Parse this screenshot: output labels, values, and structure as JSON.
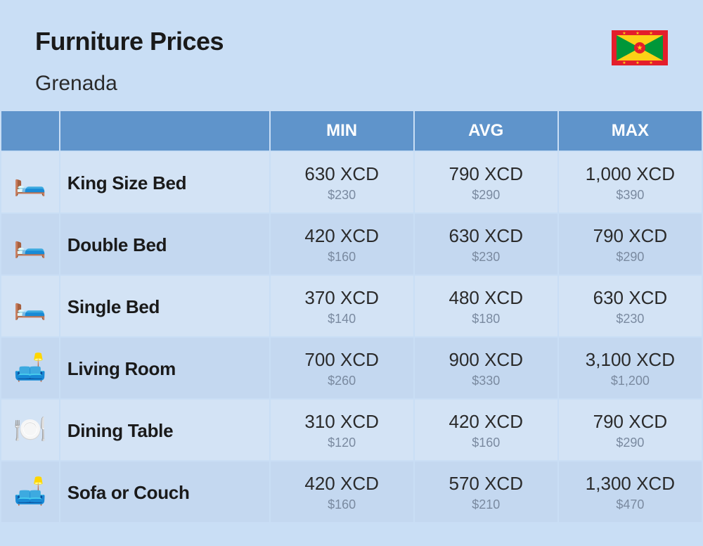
{
  "header": {
    "title": "Furniture Prices",
    "subtitle": "Grenada"
  },
  "table": {
    "columns": [
      "MIN",
      "AVG",
      "MAX"
    ],
    "header_bg": "#5f94cb",
    "header_text_color": "#ffffff",
    "row_bg": "#d3e3f5",
    "row_alt_bg": "#c4d8f0",
    "currency": "XCD",
    "alt_currency_prefix": "$",
    "rows": [
      {
        "icon": "🛏️",
        "name": "King Size Bed",
        "min": {
          "main": "630 XCD",
          "sub": "$230"
        },
        "avg": {
          "main": "790 XCD",
          "sub": "$290"
        },
        "max": {
          "main": "1,000 XCD",
          "sub": "$390"
        }
      },
      {
        "icon": "🛏️",
        "name": "Double Bed",
        "min": {
          "main": "420 XCD",
          "sub": "$160"
        },
        "avg": {
          "main": "630 XCD",
          "sub": "$230"
        },
        "max": {
          "main": "790 XCD",
          "sub": "$290"
        }
      },
      {
        "icon": "🛏️",
        "name": "Single Bed",
        "min": {
          "main": "370 XCD",
          "sub": "$140"
        },
        "avg": {
          "main": "480 XCD",
          "sub": "$180"
        },
        "max": {
          "main": "630 XCD",
          "sub": "$230"
        }
      },
      {
        "icon": "🛋️",
        "name": "Living Room",
        "min": {
          "main": "700 XCD",
          "sub": "$260"
        },
        "avg": {
          "main": "900 XCD",
          "sub": "$330"
        },
        "max": {
          "main": "3,100 XCD",
          "sub": "$1,200"
        }
      },
      {
        "icon": "🍽️",
        "name": "Dining Table",
        "min": {
          "main": "310 XCD",
          "sub": "$120"
        },
        "avg": {
          "main": "420 XCD",
          "sub": "$160"
        },
        "max": {
          "main": "790 XCD",
          "sub": "$290"
        }
      },
      {
        "icon": "🛋️",
        "name": "Sofa or Couch",
        "min": {
          "main": "420 XCD",
          "sub": "$160"
        },
        "avg": {
          "main": "570 XCD",
          "sub": "$210"
        },
        "max": {
          "main": "1,300 XCD",
          "sub": "$470"
        }
      }
    ]
  },
  "styles": {
    "page_bg": "#c9def5",
    "title_color": "#1a1a1a",
    "title_fontsize": 36,
    "subtitle_fontsize": 30,
    "header_fontsize": 24,
    "name_fontsize": 26,
    "price_main_fontsize": 26,
    "price_sub_fontsize": 18,
    "price_main_color": "#2a2a2a",
    "price_sub_color": "#7a8aa0"
  },
  "flag": {
    "country": "Grenada",
    "bg": "#e41e2b",
    "green": "#009739",
    "yellow": "#fcd116"
  }
}
